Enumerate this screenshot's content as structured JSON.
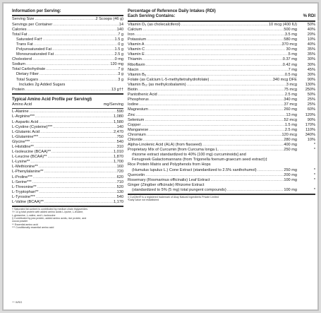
{
  "left": {
    "title": "Information per Serving:",
    "rows": [
      {
        "name": "Serving Size",
        "val": "2 Scoops (46 g)",
        "cls": ""
      },
      {
        "name": "Servings per Container",
        "val": "14",
        "cls": ""
      },
      {
        "name": "Calories",
        "val": "140",
        "cls": ""
      },
      {
        "name": "Total Fat",
        "val": "7 g",
        "cls": ""
      },
      {
        "name": "Saturated Fat†",
        "val": "1.5 g",
        "cls": "ind"
      },
      {
        "name": "Trans Fat",
        "val": "0 g",
        "cls": "ind"
      },
      {
        "name": "Polyunsaturated Fat",
        "val": "1.5 g",
        "cls": "ind"
      },
      {
        "name": "Monounsaturated Fat",
        "val": "2.5 g",
        "cls": "ind"
      },
      {
        "name": "Cholesterol",
        "val": "0 mg",
        "cls": ""
      },
      {
        "name": "Sodium",
        "val": "120 mg",
        "cls": ""
      },
      {
        "name": "Total Carbohydrate",
        "val": "7 g",
        "cls": ""
      },
      {
        "name": "Dietary Fiber",
        "val": "3 g",
        "cls": "ind"
      },
      {
        "name": "Total Sugars",
        "val": "3 g",
        "cls": "ind"
      },
      {
        "name": "Includes 2g Added Sugars",
        "val": "",
        "cls": "ind2"
      },
      {
        "name": "Protein",
        "val": "13 g††",
        "cls": ""
      }
    ],
    "aa_title": "Typical Amino Acid Profile per Serving§",
    "aa_col1": "Amino Acid",
    "aa_col2": "mg/Serving",
    "aa_rows": [
      {
        "name": "L-Alanine",
        "val": "590"
      },
      {
        "name": "L-Arginine***",
        "val": "1,080"
      },
      {
        "name": "L-Aspartic Acid",
        "val": "1,580"
      },
      {
        "name": "L-Cystine (Cysteine)***",
        "val": "140"
      },
      {
        "name": "L-Glutamic Acid",
        "val": "2,470"
      },
      {
        "name": "L-Glutamine***",
        "val": "750"
      },
      {
        "name": "Glycine***",
        "val": "540"
      },
      {
        "name": "L-Histidine**",
        "val": "310"
      },
      {
        "name": "L-Isoleucine (BCAA)**",
        "val": "1,010"
      },
      {
        "name": "L-Leucine (BCAA)**",
        "val": "1,870"
      },
      {
        "name": "L-Lysine**",
        "val": "1,700"
      },
      {
        "name": "L-Methionine**",
        "val": "160"
      },
      {
        "name": "L-Phenylalanine**",
        "val": "720"
      },
      {
        "name": "L-Proline***",
        "val": "620"
      },
      {
        "name": "L-Serine***",
        "val": "710"
      },
      {
        "name": "L-Threonine**",
        "val": "520"
      },
      {
        "name": "L-Tryptophan**",
        "val": "130"
      },
      {
        "name": "L-Tyrosine***",
        "val": "540"
      },
      {
        "name": "L-Valine (BCAA)**",
        "val": "1,170"
      }
    ],
    "footnotes": [
      "† Saturated fat content is contributed by medium chain triglycerides",
      "†† 14 g total protein with added amino acids L-lysine, L-leucine,",
      "L-glutamine, L-valine, and L-isoleucine",
      "§ Contributed by pea protein, added amino acids, rice protein, and",
      "cocoa powder",
      "** Essential amino acid",
      "*** Conditionally essential amino acid"
    ]
  },
  "right": {
    "title1": "Percentage of Reference Daily Intakes (RDI)",
    "title2": "Each Serving Contains:",
    "pct_header": "% RDI",
    "rows": [
      {
        "name": "Vitamin D₃ (as cholecalciferol)",
        "val": "10 mcg (400 IU)",
        "pct": "50%"
      },
      {
        "name": "Calcium",
        "val": "500 mg",
        "pct": "40%"
      },
      {
        "name": "Iron",
        "val": "3.5 mg",
        "pct": "20%"
      },
      {
        "name": "Potassium",
        "val": "580 mg",
        "pct": "10%"
      },
      {
        "name": "Vitamin A",
        "val": "370 mcg",
        "pct": "40%"
      },
      {
        "name": "Vitamin C",
        "val": "30 mg",
        "pct": "35%"
      },
      {
        "name": "Vitamin E",
        "val": "5 mg",
        "pct": "35%"
      },
      {
        "name": "Thiamin",
        "val": "0.37 mg",
        "pct": "30%"
      },
      {
        "name": "Riboflavin",
        "val": "0.42 mg",
        "pct": "30%"
      },
      {
        "name": "Niacin",
        "val": "7 mg",
        "pct": "45%"
      },
      {
        "name": "Vitamin B₆",
        "val": "0.5 mg",
        "pct": "30%"
      },
      {
        "name": "Folate (as Calcium L-5-methyltetrahydrofolate)",
        "val": "340 mcg DFE",
        "pct": "90%"
      },
      {
        "name": "Vitamin B₁₂ (as methylcobalamin)",
        "val": "3 mcg",
        "pct": "130%"
      },
      {
        "name": "Biotin",
        "val": "75 mcg",
        "pct": "250%"
      },
      {
        "name": "Pantothenic Acid",
        "val": "2.5 mg",
        "pct": "50%"
      },
      {
        "name": "Phosphorus",
        "val": "340 mg",
        "pct": "25%"
      },
      {
        "name": "Iodine",
        "val": "37 mcg",
        "pct": "25%"
      },
      {
        "name": "Magnesium",
        "val": "260 mg",
        "pct": "60%"
      },
      {
        "name": "Zinc",
        "val": "13 mg",
        "pct": "120%"
      },
      {
        "name": "Selenium",
        "val": "52 mcg",
        "pct": "90%"
      },
      {
        "name": "Copper",
        "val": "1.5 mg",
        "pct": "170%"
      },
      {
        "name": "Manganese",
        "val": "2.5 mg",
        "pct": "110%"
      },
      {
        "name": "Chromium",
        "val": "120 mcg",
        "pct": "340%"
      },
      {
        "name": "Chloride",
        "val": "280 mg",
        "pct": "10%"
      },
      {
        "name": "Alpha-Linolenic Acid (ALA) (from flaxseed)",
        "val": "400 mg",
        "pct": "*"
      }
    ],
    "blocks": [
      {
        "lines": [
          "Proprietary Mix of Curcumin [from Curcuma longa L.",
          "rhizome extract standardized to 40% (100 mg) curcuminoids] and",
          "Fenugreek Galactomannans (from Trigonella foenum-graecum seed extract)‡"
        ],
        "val": "250 mg",
        "pct": "*"
      },
      {
        "lines": [
          "Rice Protein Matrix and Polyphenols from Hops",
          "(Humulus lupulus L.) Cone Extract (standardized to 2.5% xanthohumol)"
        ],
        "val": "250 mg",
        "pct": "*"
      },
      {
        "lines": [
          "Quercetin"
        ],
        "val": "200 mg",
        "pct": "*"
      },
      {
        "lines": [
          "Rosemary (Rosmarinus officinalis) Leaf Extract"
        ],
        "val": "100 mg",
        "pct": "*"
      },
      {
        "lines": [
          "Ginger (Zingiber officinale) Rhizome Extract",
          "(standardized to 5% (5 mg) total pungent compounds)"
        ],
        "val": "100 mg",
        "pct": "*"
      }
    ],
    "footnotes": [
      "‡ CurQfen® is a registered trademark of Akay Natural Ingredients Private Limited",
      "*Daily value not established"
    ]
  },
  "code": "^^ WSG"
}
